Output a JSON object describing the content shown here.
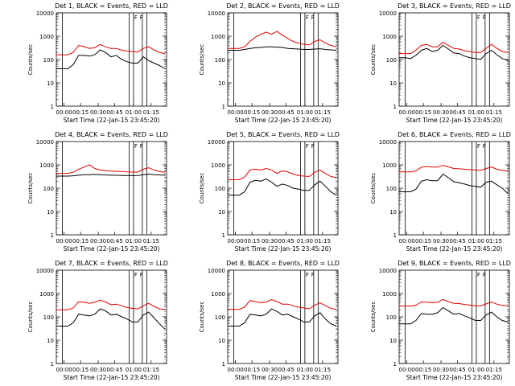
{
  "page": {
    "background": "#ffffff",
    "ink": "#000000"
  },
  "common": {
    "title_suffix": ", BLACK = Events, RED = LLD",
    "xlabel": "Start Time (22-Jan-15 23:45:20)",
    "ylabel": "Counts/sec",
    "xticks": [
      "00:00",
      "00:15",
      "00:30",
      "00:45",
      "01:00",
      "01:15"
    ],
    "yticks": [
      "1",
      "10",
      "100",
      "1000",
      "10000"
    ],
    "flags": [
      "F",
      "F"
    ]
  },
  "chart_data": [
    {
      "type": "line",
      "title": "Det 1",
      "ylim": [
        1,
        10000
      ],
      "yscale": "log",
      "series": [
        {
          "role": "events",
          "color": "#000000",
          "values": [
            40,
            40,
            60,
            150,
            150,
            140,
            160,
            260,
            200,
            130,
            150,
            100,
            80,
            70,
            70,
            130,
            90,
            70,
            55,
            40
          ]
        },
        {
          "role": "lld",
          "color": "#e00000",
          "values": [
            160,
            160,
            200,
            400,
            360,
            300,
            320,
            440,
            350,
            300,
            300,
            250,
            230,
            220,
            210,
            300,
            350,
            260,
            200,
            180
          ]
        }
      ]
    },
    {
      "type": "line",
      "title": "Det 2",
      "ylim": [
        1,
        10000
      ],
      "yscale": "log",
      "series": [
        {
          "role": "events",
          "color": "#000000",
          "values": [
            250,
            250,
            270,
            300,
            320,
            330,
            350,
            350,
            340,
            330,
            300,
            290,
            280,
            270,
            270,
            280,
            290,
            270,
            260,
            250
          ]
        },
        {
          "role": "lld",
          "color": "#e00000",
          "values": [
            300,
            300,
            350,
            600,
            900,
            1200,
            1500,
            1200,
            1600,
            1100,
            800,
            600,
            500,
            450,
            420,
            600,
            700,
            500,
            400,
            350
          ]
        }
      ]
    },
    {
      "type": "line",
      "title": "Det 3",
      "ylim": [
        1,
        10000
      ],
      "yscale": "log",
      "series": [
        {
          "role": "events",
          "color": "#000000",
          "values": [
            120,
            110,
            150,
            250,
            300,
            220,
            250,
            400,
            280,
            190,
            180,
            140,
            120,
            110,
            100,
            180,
            250,
            160,
            110,
            90
          ]
        },
        {
          "role": "lld",
          "color": "#e00000",
          "values": [
            180,
            180,
            250,
            400,
            450,
            350,
            350,
            550,
            400,
            300,
            280,
            240,
            220,
            200,
            200,
            300,
            450,
            300,
            220,
            200
          ]
        }
      ]
    },
    {
      "type": "line",
      "title": "Det 4",
      "ylim": [
        1,
        10000
      ],
      "yscale": "log",
      "series": [
        {
          "role": "events",
          "color": "#000000",
          "values": [
            330,
            330,
            340,
            360,
            380,
            380,
            390,
            380,
            370,
            360,
            360,
            350,
            350,
            345,
            350,
            380,
            400,
            380,
            370,
            360
          ]
        },
        {
          "role": "lld",
          "color": "#e00000",
          "values": [
            430,
            430,
            480,
            650,
            800,
            1000,
            700,
            600,
            560,
            540,
            530,
            520,
            500,
            490,
            490,
            650,
            750,
            600,
            520,
            480
          ]
        }
      ]
    },
    {
      "type": "line",
      "title": "Det 5",
      "ylim": [
        1,
        10000
      ],
      "yscale": "log",
      "series": [
        {
          "role": "events",
          "color": "#000000",
          "values": [
            50,
            50,
            70,
            180,
            220,
            200,
            250,
            180,
            120,
            150,
            130,
            100,
            90,
            80,
            80,
            140,
            200,
            120,
            70,
            50
          ]
        },
        {
          "role": "lld",
          "color": "#e00000",
          "values": [
            230,
            230,
            300,
            600,
            650,
            600,
            700,
            600,
            430,
            550,
            500,
            400,
            350,
            330,
            320,
            480,
            600,
            420,
            320,
            280
          ]
        }
      ]
    },
    {
      "type": "line",
      "title": "Det 6",
      "ylim": [
        1,
        10000
      ],
      "yscale": "log",
      "series": [
        {
          "role": "events",
          "color": "#000000",
          "values": [
            70,
            70,
            90,
            200,
            230,
            210,
            210,
            400,
            280,
            190,
            170,
            150,
            130,
            120,
            110,
            180,
            200,
            140,
            100,
            60
          ]
        },
        {
          "role": "lld",
          "color": "#e00000",
          "values": [
            500,
            500,
            550,
            800,
            850,
            800,
            800,
            950,
            820,
            700,
            680,
            650,
            620,
            600,
            580,
            700,
            800,
            650,
            580,
            540
          ]
        }
      ]
    },
    {
      "type": "line",
      "title": "Det 7",
      "ylim": [
        1,
        10000
      ],
      "yscale": "log",
      "series": [
        {
          "role": "events",
          "color": "#000000",
          "values": [
            40,
            40,
            55,
            130,
            120,
            110,
            130,
            220,
            180,
            120,
            130,
            100,
            80,
            60,
            60,
            120,
            160,
            90,
            50,
            30
          ]
        },
        {
          "role": "lld",
          "color": "#e00000",
          "values": [
            200,
            200,
            240,
            450,
            420,
            380,
            420,
            520,
            430,
            330,
            350,
            300,
            250,
            230,
            220,
            300,
            380,
            280,
            220,
            210
          ]
        }
      ]
    },
    {
      "type": "line",
      "title": "Det 8",
      "ylim": [
        1,
        10000
      ],
      "yscale": "log",
      "series": [
        {
          "role": "events",
          "color": "#000000",
          "values": [
            40,
            40,
            55,
            130,
            120,
            110,
            130,
            220,
            170,
            120,
            130,
            100,
            80,
            60,
            60,
            110,
            150,
            80,
            50,
            40
          ]
        },
        {
          "role": "lld",
          "color": "#e00000",
          "values": [
            210,
            210,
            260,
            500,
            450,
            400,
            430,
            550,
            450,
            350,
            350,
            300,
            260,
            240,
            220,
            320,
            400,
            300,
            230,
            210
          ]
        }
      ]
    },
    {
      "type": "line",
      "title": "Det 9",
      "ylim": [
        1,
        10000
      ],
      "yscale": "log",
      "series": [
        {
          "role": "events",
          "color": "#000000",
          "values": [
            50,
            50,
            70,
            140,
            130,
            130,
            150,
            250,
            180,
            130,
            140,
            110,
            90,
            70,
            70,
            120,
            160,
            100,
            70,
            60
          ]
        },
        {
          "role": "lld",
          "color": "#e00000",
          "values": [
            290,
            290,
            320,
            430,
            420,
            400,
            420,
            560,
            450,
            380,
            370,
            340,
            320,
            300,
            300,
            360,
            430,
            350,
            310,
            300
          ]
        }
      ]
    }
  ]
}
